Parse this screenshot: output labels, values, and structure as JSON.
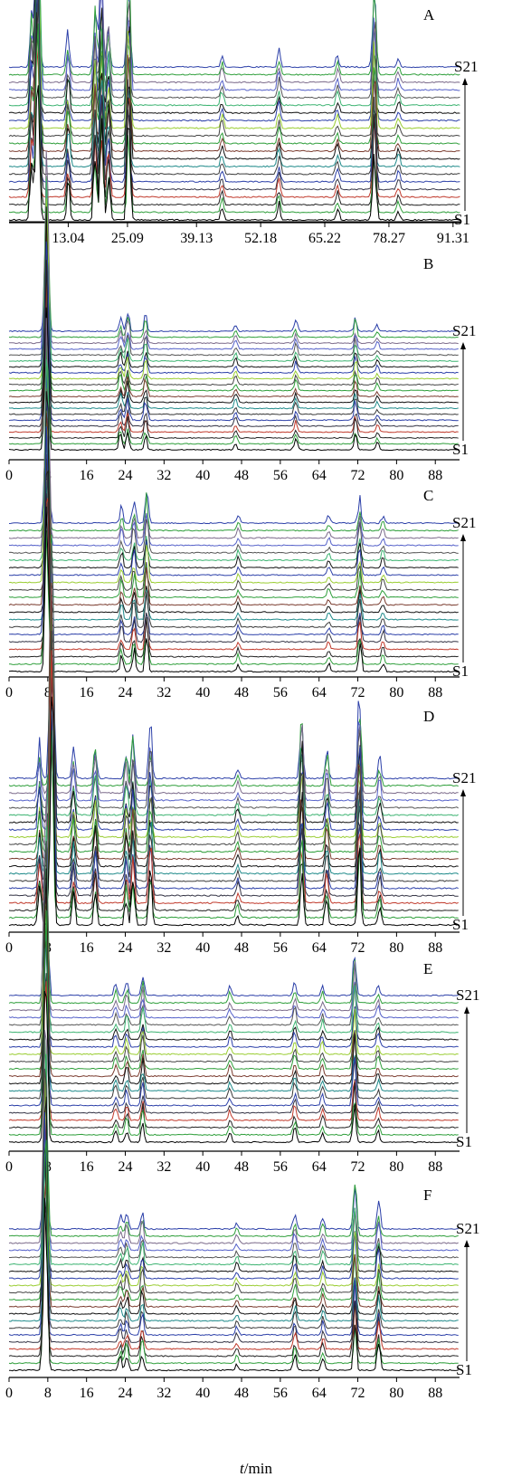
{
  "figure": {
    "xaxis_title_italic": "t",
    "xaxis_title_rest": "/min"
  },
  "chart_data": [
    {
      "type": "line",
      "panel": "A",
      "chart": "chromatogram overlay (stacked)",
      "x_ticks": [
        "13.04",
        "25.09",
        "39.13",
        "52.18",
        "65.22",
        "78.27",
        "91.31"
      ],
      "x_tick_values": [
        13.04,
        25.09,
        39.13,
        52.18,
        65.22,
        78.27,
        91.31
      ],
      "xlim": [
        1.0,
        93.0
      ],
      "series_range": [
        "S1",
        "S21"
      ],
      "series_count": 21,
      "main_peak": 6.8,
      "peaks": [
        [
          5.6,
          0.25
        ],
        [
          6.8,
          1.0
        ],
        [
          13.0,
          0.15
        ],
        [
          18.5,
          0.28
        ],
        [
          19.8,
          0.45
        ],
        [
          21.2,
          0.22
        ],
        [
          25.3,
          0.45
        ],
        [
          44.3,
          0.06
        ],
        [
          55.9,
          0.08
        ],
        [
          67.8,
          0.06
        ],
        [
          75.3,
          0.35
        ],
        [
          80.2,
          0.05
        ]
      ],
      "baseline_line": true
    },
    {
      "type": "line",
      "panel": "B",
      "chart": "chromatogram overlay (stacked)",
      "x_ticks": [
        "0",
        "8",
        "16",
        "24",
        "32",
        "40",
        "48",
        "56",
        "64",
        "72",
        "80",
        "88"
      ],
      "x_tick_values": [
        0,
        8,
        16,
        24,
        32,
        40,
        48,
        56,
        64,
        72,
        80,
        88
      ],
      "xlim": [
        0,
        93
      ],
      "series_range": [
        "S1",
        "S21"
      ],
      "series_count": 21,
      "main_peak": 7.7,
      "peaks": [
        [
          7.7,
          1.0
        ],
        [
          23.0,
          0.08
        ],
        [
          24.5,
          0.12
        ],
        [
          28.2,
          0.1
        ],
        [
          46.8,
          0.05
        ],
        [
          59.2,
          0.06
        ],
        [
          71.5,
          0.1
        ],
        [
          76.0,
          0.04
        ]
      ],
      "baseline_line": false
    },
    {
      "type": "line",
      "panel": "C",
      "chart": "chromatogram overlay (stacked)",
      "x_ticks": [
        "0",
        "8",
        "16",
        "24",
        "32",
        "40",
        "48",
        "56",
        "64",
        "72",
        "80",
        "88"
      ],
      "x_tick_values": [
        0,
        8,
        16,
        24,
        32,
        40,
        48,
        56,
        64,
        72,
        80,
        88
      ],
      "xlim": [
        0,
        93
      ],
      "series_range": [
        "S1",
        "S21"
      ],
      "series_count": 21,
      "main_peak": 7.8,
      "peaks": [
        [
          7.8,
          1.0
        ],
        [
          23.2,
          0.08
        ],
        [
          25.8,
          0.12
        ],
        [
          28.4,
          0.18
        ],
        [
          47.3,
          0.05
        ],
        [
          66.0,
          0.04
        ],
        [
          72.4,
          0.14
        ],
        [
          77.2,
          0.05
        ]
      ],
      "baseline_line": false
    },
    {
      "type": "line",
      "panel": "D",
      "chart": "chromatogram overlay (stacked)",
      "x_ticks": [
        "0",
        "8",
        "16",
        "24",
        "32",
        "40",
        "48",
        "56",
        "64",
        "72",
        "80",
        "88"
      ],
      "x_tick_values": [
        0,
        8,
        16,
        24,
        32,
        40,
        48,
        56,
        64,
        72,
        80,
        88
      ],
      "xlim": [
        0,
        93
      ],
      "series_range": [
        "S1",
        "S21"
      ],
      "series_count": 21,
      "main_peak": 8.8,
      "peaks": [
        [
          6.3,
          0.15
        ],
        [
          8.8,
          1.0
        ],
        [
          13.3,
          0.12
        ],
        [
          17.8,
          0.15
        ],
        [
          24.2,
          0.12
        ],
        [
          25.6,
          0.18
        ],
        [
          29.2,
          0.22
        ],
        [
          47.2,
          0.05
        ],
        [
          60.4,
          0.3
        ],
        [
          65.6,
          0.12
        ],
        [
          72.3,
          0.35
        ],
        [
          76.5,
          0.08
        ]
      ],
      "baseline_line": false
    },
    {
      "type": "line",
      "panel": "E",
      "chart": "chromatogram overlay (stacked)",
      "x_ticks": [
        "0",
        "8",
        "16",
        "24",
        "32",
        "40",
        "48",
        "56",
        "64",
        "72",
        "80",
        "88"
      ],
      "x_tick_values": [
        0,
        8,
        16,
        24,
        32,
        40,
        48,
        56,
        64,
        72,
        80,
        88
      ],
      "xlim": [
        0,
        93
      ],
      "series_range": [
        "S1",
        "S21"
      ],
      "series_count": 21,
      "main_peak": 7.6,
      "peaks": [
        [
          7.6,
          1.0
        ],
        [
          22.0,
          0.06
        ],
        [
          24.3,
          0.08
        ],
        [
          27.6,
          0.12
        ],
        [
          45.6,
          0.05
        ],
        [
          59.0,
          0.08
        ],
        [
          64.7,
          0.06
        ],
        [
          71.3,
          0.22
        ],
        [
          76.2,
          0.06
        ]
      ],
      "baseline_line": false
    },
    {
      "type": "line",
      "panel": "F",
      "chart": "chromatogram overlay (stacked)",
      "x_ticks": [
        "0",
        "8",
        "16",
        "24",
        "32",
        "40",
        "48",
        "56",
        "64",
        "72",
        "80",
        "88"
      ],
      "x_tick_values": [
        0,
        8,
        16,
        24,
        32,
        40,
        48,
        56,
        64,
        72,
        80,
        88
      ],
      "xlim": [
        0,
        93
      ],
      "series_range": [
        "S1",
        "S21"
      ],
      "series_count": 21,
      "main_peak": 7.5,
      "peaks": [
        [
          7.5,
          1.0
        ],
        [
          23.0,
          0.06
        ],
        [
          24.3,
          0.08
        ],
        [
          27.5,
          0.1
        ],
        [
          47.0,
          0.04
        ],
        [
          59.0,
          0.08
        ],
        [
          64.8,
          0.06
        ],
        [
          71.4,
          0.25
        ],
        [
          76.3,
          0.12
        ]
      ],
      "baseline_line": false
    }
  ],
  "trace_colors": [
    "#000000",
    "#2e9e3a",
    "#222222",
    "#c0392b",
    "#333344",
    "#2b3fa8",
    "#3a3a3a",
    "#1f8a8a",
    "#111111",
    "#7a3b2e",
    "#2e9e3a",
    "#444444",
    "#9acd32",
    "#2b3fa8",
    "#111111",
    "#3cb371",
    "#555555",
    "#5561c9",
    "#7b6a8a",
    "#2e9e3a",
    "#2b3fa8"
  ]
}
